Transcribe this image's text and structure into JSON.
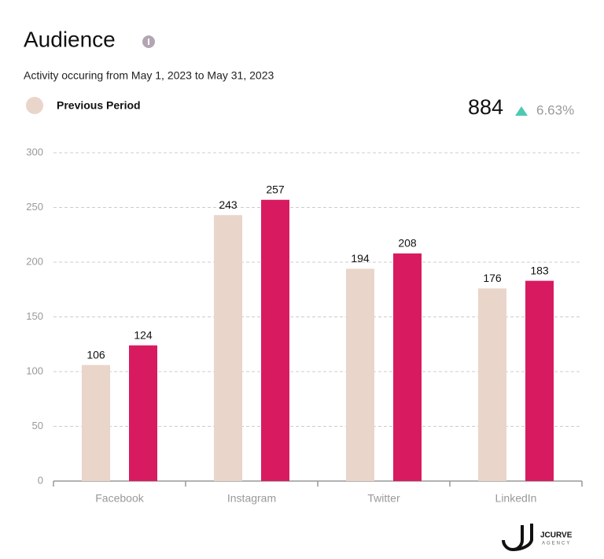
{
  "chart_data": {
    "type": "bar",
    "title": "Audience",
    "subtitle": "Activity occuring from May 1, 2023 to May 31, 2023",
    "total": 884,
    "change": {
      "value": 6.63,
      "label": "6.63%"
    },
    "categories": [
      "Facebook",
      "Instagram",
      "Twitter",
      "LinkedIn"
    ],
    "series": [
      {
        "name": "Previous Period",
        "color": "#ead5cb",
        "values": [
          106,
          243,
          194,
          176
        ]
      },
      {
        "color": "#d81b60",
        "values": [
          124,
          257,
          208,
          183
        ]
      }
    ],
    "ylim": [
      0,
      300
    ],
    "yticks": [
      0,
      50,
      100,
      150,
      200,
      250,
      300
    ],
    "grid": true,
    "logo": {
      "name": "JCURVE",
      "tagline": "AGENCY"
    }
  }
}
